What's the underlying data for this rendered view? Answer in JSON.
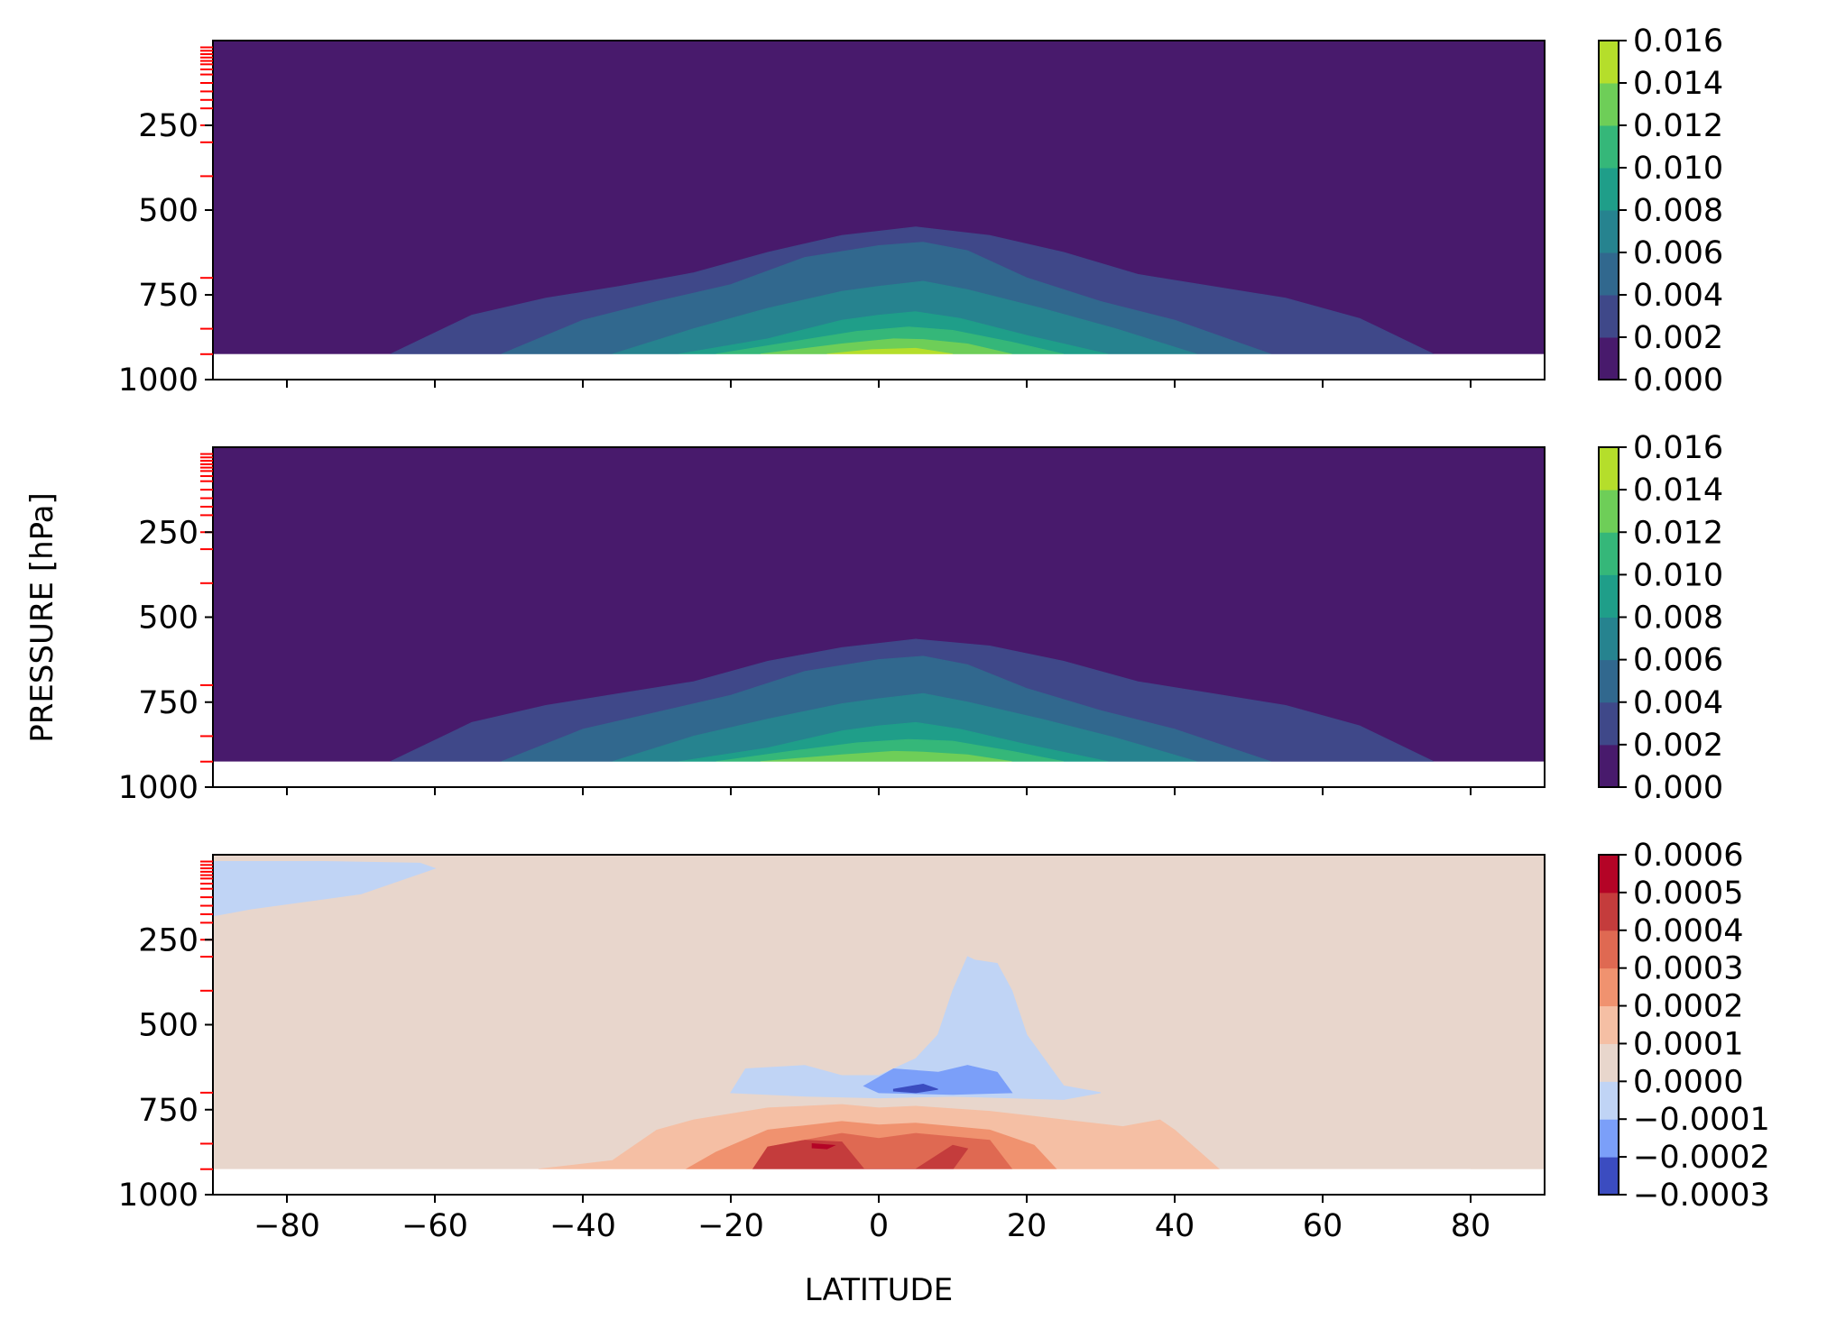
{
  "chart_data": [
    {
      "type": "contourf",
      "panel": "top",
      "x": {
        "range": [
          -90,
          90
        ]
      },
      "y": {
        "range": [
          1000,
          0
        ],
        "ticks": [
          250,
          500,
          750,
          1000
        ],
        "inverted": true
      },
      "data_floor_pressure": 925,
      "colormap": "viridis",
      "colorbar": {
        "levels": [
          0.0,
          0.002,
          0.004,
          0.006,
          0.008,
          0.01,
          0.012,
          0.014,
          0.016
        ],
        "labels": [
          "0.000",
          "0.002",
          "0.004",
          "0.006",
          "0.008",
          "0.010",
          "0.012",
          "0.014",
          "0.016"
        ],
        "colors": [
          "#481a6c",
          "#3f4889",
          "#31688e",
          "#26838f",
          "#1f9e89",
          "#35b779",
          "#6ece58",
          "#b5de2b",
          "#fde725"
        ]
      },
      "contours": [
        {
          "level": 0.002,
          "lat": [
            -66,
            -55,
            -45,
            -35,
            -25,
            -15,
            -5,
            5,
            15,
            25,
            35,
            45,
            55,
            65,
            75
          ],
          "p": [
            925,
            810,
            760,
            725,
            685,
            625,
            575,
            550,
            575,
            625,
            690,
            725,
            760,
            820,
            925
          ]
        },
        {
          "level": 0.004,
          "lat": [
            -51,
            -40,
            -30,
            -20,
            -10,
            0,
            6,
            12,
            20,
            30,
            40,
            53
          ],
          "p": [
            925,
            825,
            770,
            720,
            640,
            605,
            595,
            620,
            700,
            770,
            825,
            925
          ]
        },
        {
          "level": 0.006,
          "lat": [
            -36,
            -25,
            -15,
            -5,
            0,
            6,
            12,
            22,
            32,
            43
          ],
          "p": [
            925,
            850,
            790,
            740,
            725,
            710,
            735,
            790,
            850,
            925
          ]
        },
        {
          "level": 0.008,
          "lat": [
            -27,
            -15,
            -5,
            0,
            5,
            11,
            20,
            31
          ],
          "p": [
            925,
            880,
            825,
            810,
            800,
            820,
            870,
            925
          ]
        },
        {
          "level": 0.01,
          "lat": [
            -22,
            -12,
            -3,
            4,
            10,
            18,
            25
          ],
          "p": [
            925,
            890,
            858,
            845,
            855,
            890,
            925
          ]
        },
        {
          "level": 0.012,
          "lat": [
            -16,
            -5,
            2,
            6,
            12,
            18
          ],
          "p": [
            925,
            895,
            880,
            882,
            895,
            925
          ]
        },
        {
          "level": 0.014,
          "lat": [
            -7,
            -1,
            5,
            10
          ],
          "p": [
            925,
            912,
            908,
            925
          ]
        }
      ]
    },
    {
      "type": "contourf",
      "panel": "middle",
      "x": {
        "range": [
          -90,
          90
        ]
      },
      "y": {
        "range": [
          1000,
          0
        ],
        "ticks": [
          250,
          500,
          750,
          1000
        ],
        "inverted": true
      },
      "data_floor_pressure": 925,
      "colormap": "viridis",
      "colorbar": {
        "levels": [
          0.0,
          0.002,
          0.004,
          0.006,
          0.008,
          0.01,
          0.012,
          0.014,
          0.016
        ],
        "labels": [
          "0.000",
          "0.002",
          "0.004",
          "0.006",
          "0.008",
          "0.010",
          "0.012",
          "0.014",
          "0.016"
        ],
        "colors": [
          "#481a6c",
          "#3f4889",
          "#31688e",
          "#26838f",
          "#1f9e89",
          "#35b779",
          "#6ece58",
          "#b5de2b",
          "#fde725"
        ]
      },
      "contours": [
        {
          "level": 0.002,
          "lat": [
            -66,
            -55,
            -45,
            -35,
            -25,
            -15,
            -5,
            5,
            15,
            25,
            35,
            45,
            55,
            65,
            75
          ],
          "p": [
            925,
            810,
            760,
            725,
            690,
            630,
            590,
            565,
            585,
            630,
            690,
            725,
            760,
            820,
            925
          ]
        },
        {
          "level": 0.004,
          "lat": [
            -51,
            -40,
            -30,
            -20,
            -10,
            0,
            6,
            12,
            20,
            30,
            40,
            53
          ],
          "p": [
            925,
            830,
            780,
            730,
            660,
            625,
            615,
            640,
            710,
            775,
            830,
            925
          ]
        },
        {
          "level": 0.006,
          "lat": [
            -36,
            -25,
            -15,
            -5,
            0,
            6,
            12,
            22,
            32,
            43
          ],
          "p": [
            925,
            850,
            800,
            755,
            740,
            725,
            750,
            800,
            855,
            925
          ]
        },
        {
          "level": 0.008,
          "lat": [
            -27,
            -15,
            -5,
            0,
            5,
            11,
            20,
            31
          ],
          "p": [
            925,
            885,
            835,
            820,
            810,
            830,
            875,
            925
          ]
        },
        {
          "level": 0.01,
          "lat": [
            -22,
            -12,
            -3,
            4,
            10,
            18,
            25
          ],
          "p": [
            925,
            895,
            870,
            860,
            865,
            895,
            925
          ]
        },
        {
          "level": 0.012,
          "lat": [
            -16,
            -5,
            2,
            6,
            12,
            18
          ],
          "p": [
            925,
            905,
            895,
            897,
            905,
            925
          ]
        }
      ]
    },
    {
      "type": "contourf",
      "panel": "bottom",
      "x": {
        "range": [
          -90,
          90
        ],
        "ticks": [
          -80,
          -60,
          -40,
          -20,
          0,
          20,
          40,
          60,
          80
        ],
        "tick_labels": [
          "−80",
          "−60",
          "−40",
          "−20",
          "0",
          "20",
          "40",
          "60",
          "80"
        ]
      },
      "y": {
        "range": [
          1000,
          0
        ],
        "ticks": [
          250,
          500,
          750,
          1000
        ],
        "inverted": true
      },
      "data_floor_pressure": 925,
      "colormap": "coolwarm",
      "background_color": "#e8d6cc",
      "colorbar": {
        "levels": [
          -0.0003,
          -0.0002,
          -0.0001,
          0.0,
          0.0001,
          0.0002,
          0.0003,
          0.0004,
          0.0005,
          0.0006
        ],
        "labels": [
          "−0.0003",
          "−0.0002",
          "−0.0001",
          "0.0000",
          "0.0001",
          "0.0002",
          "0.0003",
          "0.0004",
          "0.0005",
          "0.0006"
        ],
        "colors": [
          "#3b4cc0",
          "#7b9ff9",
          "#c0d4f5",
          "#e8d6cc",
          "#f5bfa4",
          "#f0926f",
          "#df6952",
          "#c43c3c",
          "#b40426"
        ]
      },
      "regions": [
        {
          "value_band": [
            -0.0001,
            0.0
          ],
          "lat": [
            -90,
            -85,
            -70,
            -60,
            -62,
            -75,
            -90
          ],
          "p": [
            180,
            160,
            115,
            40,
            25,
            20,
            20
          ]
        },
        {
          "value_band": [
            -0.0001,
            0.0
          ],
          "lat": [
            -20,
            -18,
            -10,
            -5,
            0,
            5,
            8,
            10,
            12,
            13,
            16,
            18,
            20,
            25,
            30,
            25,
            10,
            0,
            -10,
            -20
          ],
          "p": [
            700,
            630,
            620,
            650,
            650,
            600,
            530,
            400,
            300,
            310,
            320,
            400,
            530,
            680,
            700,
            720,
            710,
            715,
            710,
            700
          ]
        },
        {
          "value_band": [
            -0.0002,
            -0.0001
          ],
          "lat": [
            -2,
            2,
            8,
            12,
            16,
            18,
            10,
            0
          ],
          "p": [
            680,
            630,
            640,
            620,
            640,
            700,
            705,
            700
          ]
        },
        {
          "value_band": [
            -0.0003,
            -0.0002
          ],
          "lat": [
            2,
            6,
            8,
            5,
            2
          ],
          "p": [
            690,
            675,
            690,
            700,
            695
          ]
        },
        {
          "value_band": [
            0.0,
            0.0001
          ],
          "lat": [
            80,
            84,
            90,
            90,
            80
          ],
          "p": [
            925,
            915,
            918,
            925,
            925
          ]
        },
        {
          "value_band": [
            0.0001,
            0.0002
          ],
          "lat": [
            -46,
            -36,
            -30,
            -25,
            -15,
            -5,
            0,
            5,
            15,
            25,
            33,
            38,
            40,
            46
          ],
          "p": [
            925,
            900,
            810,
            780,
            745,
            735,
            745,
            740,
            755,
            780,
            800,
            780,
            810,
            925
          ]
        },
        {
          "value_band": [
            0.0002,
            0.0003
          ],
          "lat": [
            -26,
            -22,
            -15,
            -5,
            0,
            5,
            15,
            21,
            24
          ],
          "p": [
            925,
            875,
            810,
            785,
            795,
            790,
            810,
            855,
            925
          ]
        },
        {
          "value_band": [
            0.0003,
            0.0004
          ],
          "lat": [
            -17,
            -15,
            -5,
            0,
            5,
            15,
            18,
            13,
            10
          ],
          "p": [
            925,
            860,
            820,
            835,
            820,
            840,
            925,
            925,
            925
          ]
        },
        {
          "value_band": [
            0.0004,
            0.0005
          ],
          "lat": [
            -17,
            -15,
            -10,
            -5,
            -2,
            5,
            10,
            12,
            10,
            5
          ],
          "p": [
            925,
            860,
            840,
            845,
            925,
            925,
            855,
            865,
            925,
            925
          ]
        },
        {
          "value_band": [
            0.0005,
            0.0006
          ],
          "lat": [
            -9,
            -6,
            -7,
            -9
          ],
          "p": [
            850,
            855,
            865,
            862
          ]
        }
      ]
    }
  ],
  "axis_labels": {
    "y": "PRESSURE [hPa]",
    "x": "LATITUDE"
  },
  "model_level_marks_hPa": [
    20,
    30,
    40,
    50,
    60,
    70,
    85,
    100,
    125,
    150,
    175,
    200,
    250,
    300,
    400,
    700,
    850,
    925
  ],
  "model_level_mark_color": "#ff0000"
}
